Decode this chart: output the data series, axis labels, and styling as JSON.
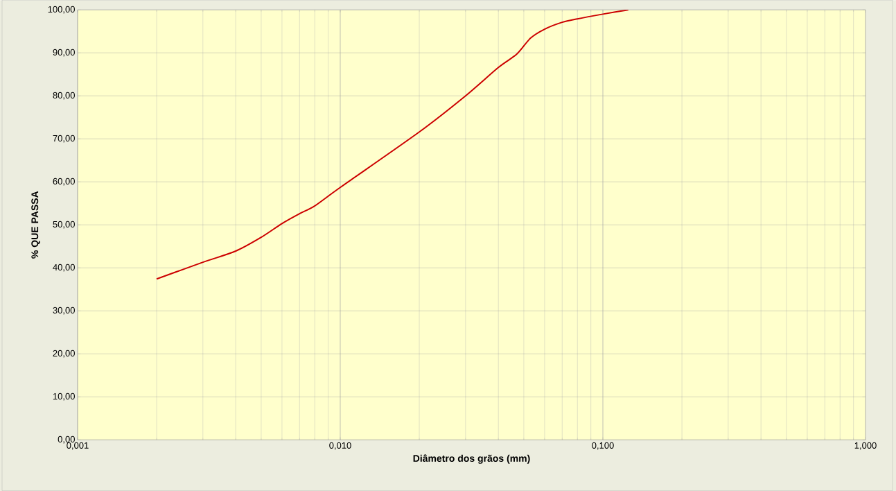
{
  "chart_data": {
    "type": "line",
    "xlabel": "Diâmetro dos grãos (mm)",
    "ylabel": "% QUE PASSA",
    "x": [
      0.002,
      0.003,
      0.004,
      0.005,
      0.006,
      0.007,
      0.008,
      0.01,
      0.02,
      0.03,
      0.04,
      0.047,
      0.053,
      0.06,
      0.07,
      0.08,
      0.1,
      0.125
    ],
    "series": [
      {
        "color": "#cc0000",
        "values": [
          37.4,
          41.3,
          43.9,
          47.1,
          50.3,
          52.6,
          54.4,
          58.7,
          71.6,
          80,
          86.6,
          89.7,
          93.4,
          95.5,
          97.1,
          97.9,
          99,
          100
        ]
      }
    ],
    "log": "x",
    "grid": true,
    "marker": "none",
    "line_style": "solid",
    "xlim": [
      0.001,
      1
    ],
    "ylim": [
      0,
      100
    ],
    "xticks": [
      {
        "value": 0.001,
        "label": "0,001"
      },
      {
        "value": 0.01,
        "label": "0,010"
      },
      {
        "value": 0.1,
        "label": "0,100"
      },
      {
        "value": 1,
        "label": "1,000"
      }
    ],
    "yticks": [
      {
        "value": 0,
        "label": "0,00"
      },
      {
        "value": 10,
        "label": "10,00"
      },
      {
        "value": 20,
        "label": "20,00"
      },
      {
        "value": 30,
        "label": "30,00"
      },
      {
        "value": 40,
        "label": "40,00"
      },
      {
        "value": 50,
        "label": "50,00"
      },
      {
        "value": 60,
        "label": "60,00"
      },
      {
        "value": 70,
        "label": "70,00"
      },
      {
        "value": 80,
        "label": "80,00"
      },
      {
        "value": 90,
        "label": "90,00"
      },
      {
        "value": 100,
        "label": "100,00"
      }
    ]
  }
}
